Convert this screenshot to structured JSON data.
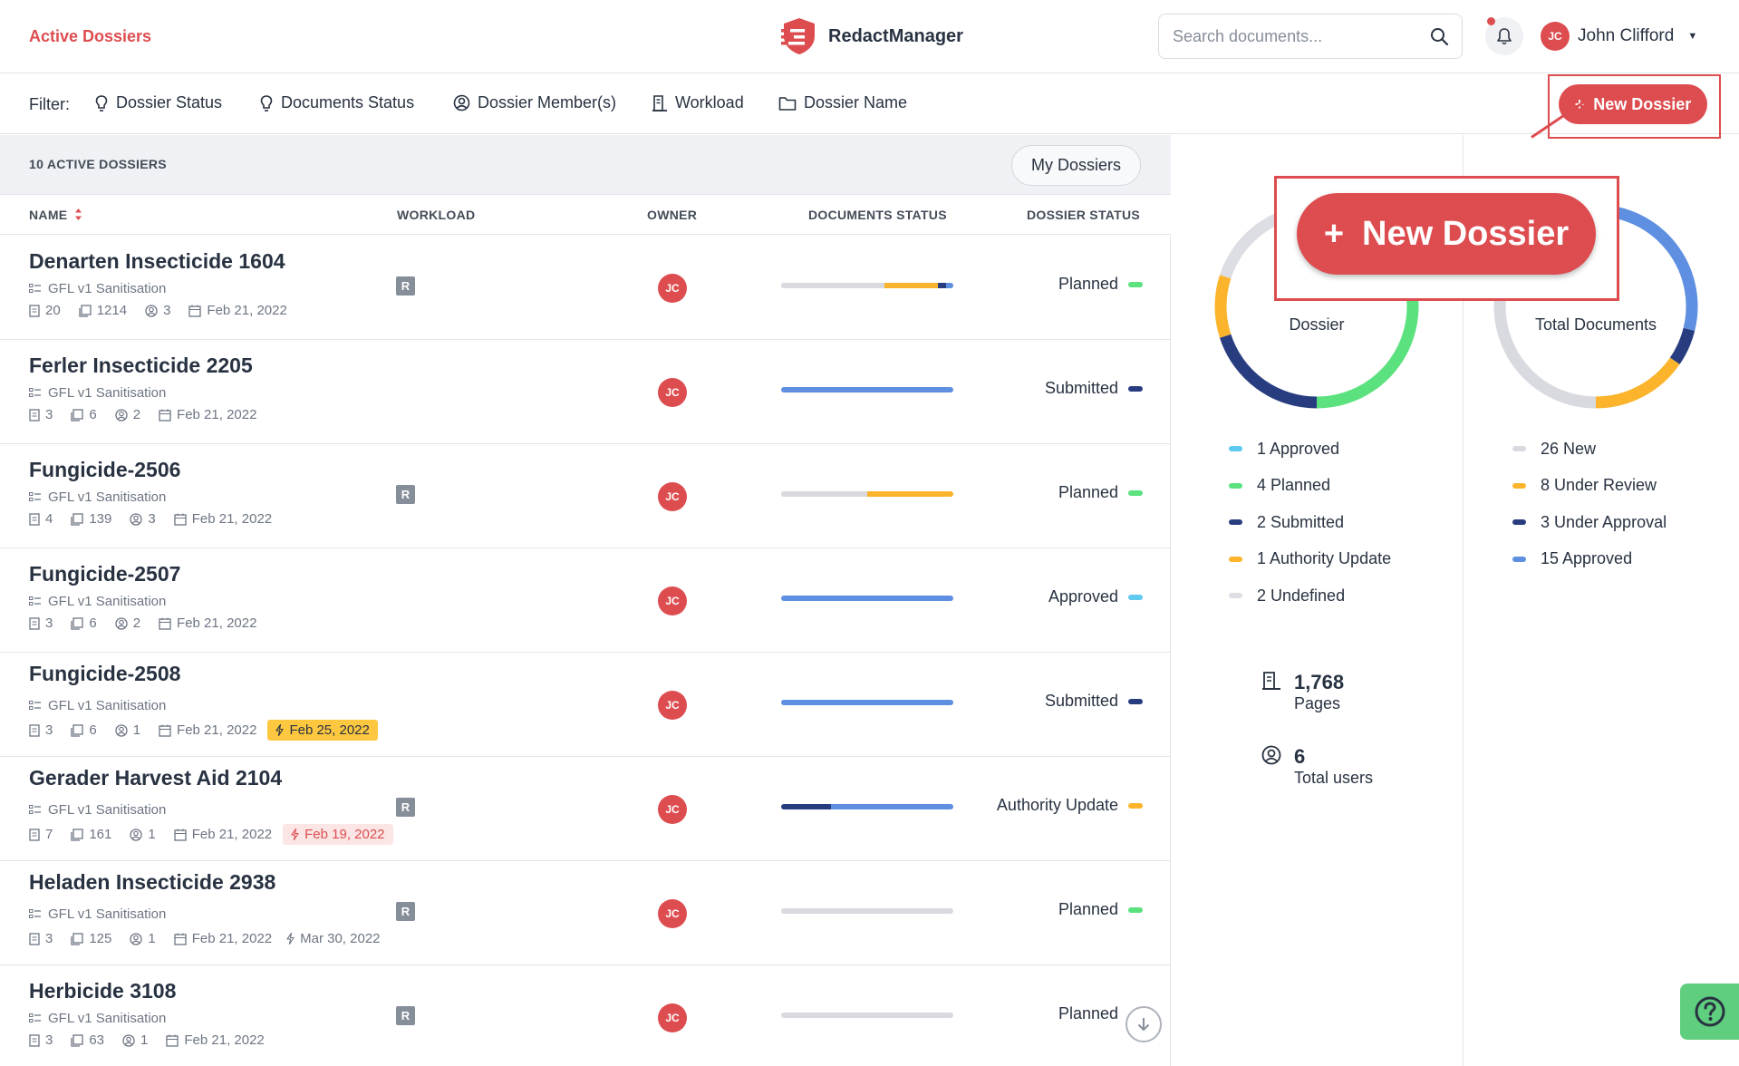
{
  "header": {
    "breadcrumb": "Active Dossiers",
    "brand": "RedactManager",
    "search_placeholder": "Search documents...",
    "user_initials": "JC",
    "user_name": "John Clifford"
  },
  "filters": {
    "label": "Filter:",
    "items": [
      "Dossier Status",
      "Documents Status",
      "Dossier Member(s)",
      "Workload",
      "Dossier Name"
    ],
    "new_dossier": "New Dossier"
  },
  "list": {
    "count_label": "10 ACTIVE DOSSIERS",
    "my_dossiers": "My Dossiers",
    "columns": {
      "name": "NAME",
      "workload": "WORKLOAD",
      "owner": "OWNER",
      "documents_status": "DOCUMENTS STATUS",
      "dossier_status": "DOSSIER STATUS"
    }
  },
  "dossiers": [
    {
      "name": "Denarten Insecticide 1604",
      "template": "GFL v1 Sanitisation",
      "files": "20",
      "pages": "1214",
      "members": "3",
      "created": "Feb 21, 2022",
      "due": null,
      "due_style": null,
      "workload": "R",
      "owner": "JC",
      "status": "Planned",
      "status_color": "#5be17e",
      "doc_segments": [
        {
          "pct": 60,
          "color": "#d8dae0"
        },
        {
          "pct": 31,
          "color": "#fbb42b"
        },
        {
          "pct": 5,
          "color": "#283c80"
        },
        {
          "pct": 4,
          "color": "#5e8fe0"
        }
      ]
    },
    {
      "name": "Ferler Insecticide 2205",
      "template": "GFL v1 Sanitisation",
      "files": "3",
      "pages": "6",
      "members": "2",
      "created": "Feb 21, 2022",
      "due": null,
      "due_style": null,
      "workload": null,
      "owner": "JC",
      "status": "Submitted",
      "status_color": "#283c80",
      "doc_segments": [
        {
          "pct": 100,
          "color": "#5e8fe0"
        }
      ]
    },
    {
      "name": "Fungicide-2506",
      "template": "GFL v1 Sanitisation",
      "files": "4",
      "pages": "139",
      "members": "3",
      "created": "Feb 21, 2022",
      "due": null,
      "due_style": null,
      "workload": "R",
      "owner": "JC",
      "status": "Planned",
      "status_color": "#5be17e",
      "doc_segments": [
        {
          "pct": 50,
          "color": "#d8dae0"
        },
        {
          "pct": 50,
          "color": "#fbb42b"
        }
      ]
    },
    {
      "name": "Fungicide-2507",
      "template": "GFL v1 Sanitisation",
      "files": "3",
      "pages": "6",
      "members": "2",
      "created": "Feb 21, 2022",
      "due": null,
      "due_style": null,
      "workload": null,
      "owner": "JC",
      "status": "Approved",
      "status_color": "#5fc9ef",
      "doc_segments": [
        {
          "pct": 100,
          "color": "#5e8fe0"
        }
      ]
    },
    {
      "name": "Fungicide-2508",
      "template": "GFL v1 Sanitisation",
      "files": "3",
      "pages": "6",
      "members": "1",
      "created": "Feb 21, 2022",
      "due": "Feb 25, 2022",
      "due_style": "warn",
      "workload": null,
      "owner": "JC",
      "status": "Submitted",
      "status_color": "#283c80",
      "doc_segments": [
        {
          "pct": 100,
          "color": "#5e8fe0"
        }
      ]
    },
    {
      "name": "Gerader Harvest Aid 2104",
      "template": "GFL v1 Sanitisation",
      "files": "7",
      "pages": "161",
      "members": "1",
      "created": "Feb 21, 2022",
      "due": "Feb 19, 2022",
      "due_style": "late",
      "workload": "R",
      "owner": "JC",
      "status": "Authority Update",
      "status_color": "#fbb42b",
      "doc_segments": [
        {
          "pct": 29,
          "color": "#283c80"
        },
        {
          "pct": 71,
          "color": "#5e8fe0"
        }
      ]
    },
    {
      "name": "Heladen Insecticide 2938",
      "template": "GFL v1 Sanitisation",
      "files": "3",
      "pages": "125",
      "members": "1",
      "created": "Feb 21, 2022",
      "due": "Mar 30, 2022",
      "due_style": "plain",
      "workload": "R",
      "owner": "JC",
      "status": "Planned",
      "status_color": "#5be17e",
      "doc_segments": [
        {
          "pct": 100,
          "color": "#d8dae0"
        }
      ]
    },
    {
      "name": "Herbicide 3108",
      "template": "GFL v1 Sanitisation",
      "files": "3",
      "pages": "63",
      "members": "1",
      "created": "Feb 21, 2022",
      "due": null,
      "due_style": null,
      "workload": "R",
      "owner": "JC",
      "status": "Planned",
      "status_color": "#5be17e",
      "doc_segments": [
        {
          "pct": 100,
          "color": "#d8dae0"
        }
      ]
    }
  ],
  "stats": {
    "dossier_chart": {
      "label": "Dossier",
      "segments": [
        {
          "label": "Approved",
          "value": 1,
          "color": "#5fc9ef"
        },
        {
          "label": "Planned",
          "value": 4,
          "color": "#5be17e"
        },
        {
          "label": "Submitted",
          "value": 2,
          "color": "#283c80"
        },
        {
          "label": "Authority Update",
          "value": 1,
          "color": "#fbb42b"
        },
        {
          "label": "Undefined",
          "value": 2,
          "color": "#dcdee3"
        }
      ]
    },
    "documents_chart": {
      "label": "Total Documents",
      "segments": [
        {
          "label": "New",
          "value": 26,
          "color": "#d8dae0"
        },
        {
          "label": "Under Review",
          "value": 8,
          "color": "#fbb42b"
        },
        {
          "label": "Under Approval",
          "value": 3,
          "color": "#283c80"
        },
        {
          "label": "Approved",
          "value": 15,
          "color": "#5e8fe0"
        }
      ]
    },
    "pages_value": "1,768",
    "pages_label": "Pages",
    "users_value": "6",
    "users_label": "Total users"
  },
  "highlight": {
    "new_dossier": "New Dossier"
  }
}
